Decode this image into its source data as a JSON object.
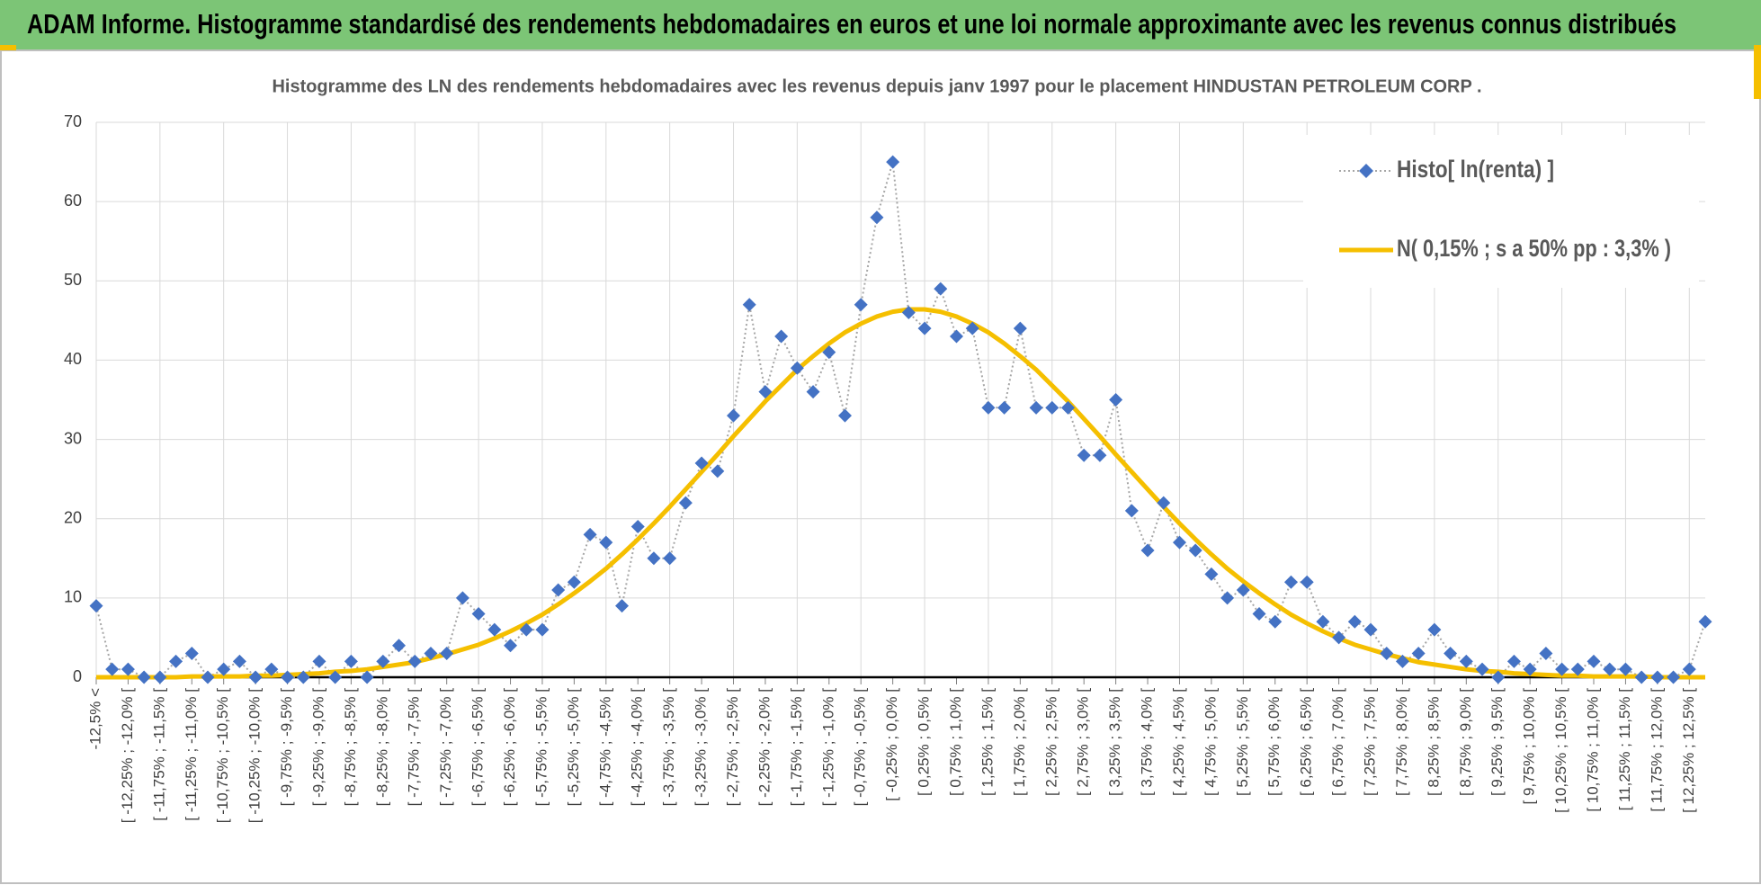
{
  "chart_data": {
    "type": "line",
    "title": "ADAM Informe. Histogramme standardisé des rendements hebdomadaires en euros et une loi normale approximante avec les revenus connus distribués",
    "subtitle": "Histogramme des LN des rendements hebdomadaires avec les revenus depuis janv 1997 pour le placement HINDUSTAN PETROLEUM CORP .",
    "categories": [
      "-12,5% <",
      null,
      "[ -12,25% ; -12,0% [",
      null,
      "[ -11,75% ; -11,5% [",
      null,
      "[ -11,25% ; -11,0% [",
      null,
      "[ -10,75% ; -10,5% [",
      null,
      "[ -10,25% ; -10,0% [",
      null,
      "[ -9,75% ; -9,5% [",
      null,
      "[ -9,25% ; -9,0% [",
      null,
      "[ -8,75% ; -8,5% [",
      null,
      "[ -8,25% ; -8,0% [",
      null,
      "[ -7,75% ; -7,5% [",
      null,
      "[ -7,25% ; -7,0% [",
      null,
      "[ -6,75% ; -6,5% [",
      null,
      "[ -6,25% ; -6,0% [",
      null,
      "[ -5,75% ; -5,5% [",
      null,
      "[ -5,25% ; -5,0% [",
      null,
      "[ -4,75% ; -4,5% [",
      null,
      "[ -4,25% ; -4,0% [",
      null,
      "[ -3,75% ; -3,5% [",
      null,
      "[ -3,25% ; -3,0% [",
      null,
      "[ -2,75% ; -2,5% [",
      null,
      "[ -2,25% ; -2,0% [",
      null,
      "[ -1,75% ; -1,5% [",
      null,
      "[ -1,25% ; -1,0% [",
      null,
      "[ -0,75% ; -0,5% [",
      null,
      "[ -0,25% ; 0,0% [",
      null,
      "[ 0,25% ; 0,5% [",
      null,
      "[ 0,75% ; 1,0% [",
      null,
      "[ 1,25% ; 1,5% [",
      null,
      "[ 1,75% ; 2,0% [",
      null,
      "[ 2,25% ; 2,5% [",
      null,
      "[ 2,75% ; 3,0% [",
      null,
      "[ 3,25% ; 3,5% [",
      null,
      "[ 3,75% ; 4,0% [",
      null,
      "[ 4,25% ; 4,5% [",
      null,
      "[ 4,75% ; 5,0% [",
      null,
      "[ 5,25% ; 5,5% [",
      null,
      "[ 5,75% ; 6,0% [",
      null,
      "[ 6,25% ; 6,5% [",
      null,
      "[ 6,75% ; 7,0% [",
      null,
      "[ 7,25% ; 7,5% [",
      null,
      "[ 7,75% ; 8,0% [",
      null,
      "[ 8,25% ; 8,5% [",
      null,
      "[ 8,75% ; 9,0% [",
      null,
      "[ 9,25% ; 9,5% [",
      null,
      "[ 9,75% ; 10,0% [",
      null,
      "[ 10,25% ; 10,5% [",
      null,
      "[ 10,75% ; 11,0% [",
      null,
      "[ 11,25% ; 11,5% [",
      null,
      "[ 11,75% ; 12,0% [",
      null,
      "[ 12,25% ; 12,5% [",
      null
    ],
    "series": [
      {
        "name": "Histo[ ln(renta) ]",
        "color": "#4472c4",
        "line_color": "#a6a6a6",
        "values": [
          9,
          1,
          1,
          0,
          0,
          2,
          3,
          0,
          1,
          2,
          0,
          1,
          0,
          0,
          2,
          0,
          2,
          0,
          2,
          4,
          2,
          3,
          3,
          10,
          8,
          6,
          4,
          6,
          6,
          11,
          12,
          18,
          17,
          9,
          19,
          15,
          15,
          22,
          27,
          26,
          33,
          47,
          36,
          43,
          39,
          36,
          41,
          33,
          47,
          58,
          65,
          46,
          44,
          49,
          43,
          44,
          34,
          34,
          44,
          34,
          34,
          34,
          28,
          28,
          35,
          21,
          16,
          22,
          17,
          16,
          13,
          10,
          11,
          8,
          7,
          12,
          12,
          7,
          5,
          7,
          6,
          3,
          2,
          3,
          6,
          3,
          2,
          1,
          0,
          2,
          1,
          3,
          1,
          1,
          2,
          1,
          1,
          0,
          0,
          0,
          1,
          7
        ]
      },
      {
        "name": "N( 0,15% ; s a 50% pp : 3,3% )",
        "color": "#f5bf00",
        "values": [
          0,
          0,
          0,
          0,
          0,
          0,
          0.1,
          0.1,
          0.1,
          0.1,
          0.2,
          0.2,
          0.3,
          0.4,
          0.5,
          0.7,
          0.8,
          1.0,
          1.3,
          1.6,
          1.9,
          2.4,
          2.9,
          3.5,
          4.1,
          4.9,
          5.8,
          6.8,
          7.9,
          9.2,
          10.6,
          12.1,
          13.7,
          15.5,
          17.4,
          19.4,
          21.5,
          23.7,
          25.9,
          28.1,
          30.4,
          32.6,
          34.8,
          36.8,
          38.8,
          40.5,
          42.1,
          43.5,
          44.6,
          45.5,
          46.1,
          46.4,
          46.4,
          46.1,
          45.5,
          44.6,
          43.5,
          42.1,
          40.5,
          38.8,
          36.8,
          34.8,
          32.6,
          30.4,
          28.1,
          25.9,
          23.7,
          21.5,
          19.4,
          17.4,
          15.5,
          13.7,
          12.1,
          10.6,
          9.2,
          7.9,
          6.8,
          5.8,
          4.9,
          4.1,
          3.5,
          2.9,
          2.4,
          1.9,
          1.6,
          1.3,
          1.0,
          0.8,
          0.7,
          0.5,
          0.4,
          0.3,
          0.2,
          0.2,
          0.1,
          0.1,
          0.1,
          0.1,
          0,
          0,
          0,
          0
        ]
      }
    ],
    "ylim": [
      0,
      70
    ],
    "yticks": [
      0,
      10,
      20,
      30,
      40,
      50,
      60,
      70
    ],
    "grid": true,
    "legend": "upper right"
  }
}
